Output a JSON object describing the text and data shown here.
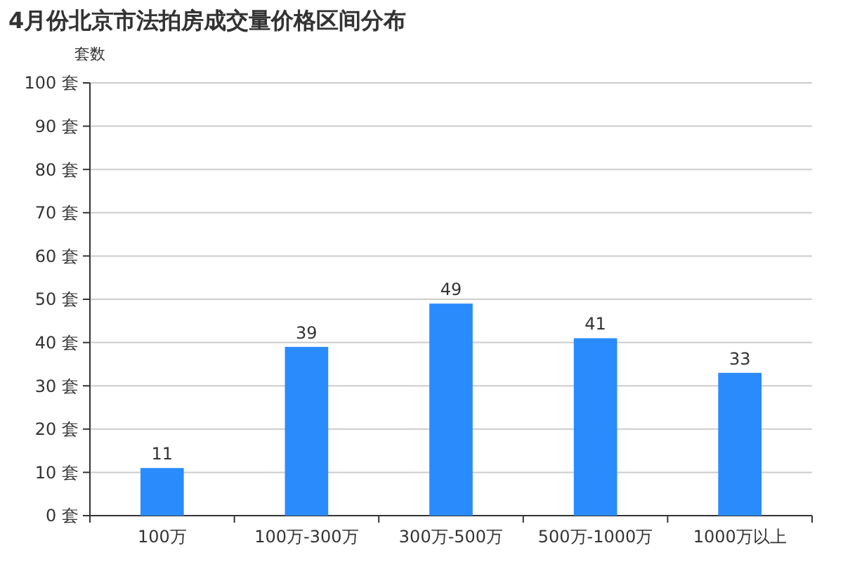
{
  "chart_data": {
    "type": "bar",
    "title": "4月份北京市法拍房成交量价格区间分布",
    "ylabel": "套数",
    "categories": [
      "100万",
      "100万-300万",
      "300万-500万",
      "500万-1000万",
      "1000万以上"
    ],
    "values": [
      11,
      39,
      49,
      41,
      33
    ],
    "color": "#2a8bfc",
    "ylim": [
      0,
      100
    ],
    "yticks": [
      {
        "value": 0,
        "label": "0 套"
      },
      {
        "value": 10,
        "label": "10 套"
      },
      {
        "value": 20,
        "label": "20 套"
      },
      {
        "value": 30,
        "label": "30 套"
      },
      {
        "value": 40,
        "label": "40 套"
      },
      {
        "value": 50,
        "label": "50 套"
      },
      {
        "value": 60,
        "label": "60 套"
      },
      {
        "value": 70,
        "label": "70 套"
      },
      {
        "value": 80,
        "label": "80 套"
      },
      {
        "value": 90,
        "label": "90 套"
      },
      {
        "value": 100,
        "label": "100 套"
      }
    ],
    "grid": "y",
    "data_labels": true
  }
}
